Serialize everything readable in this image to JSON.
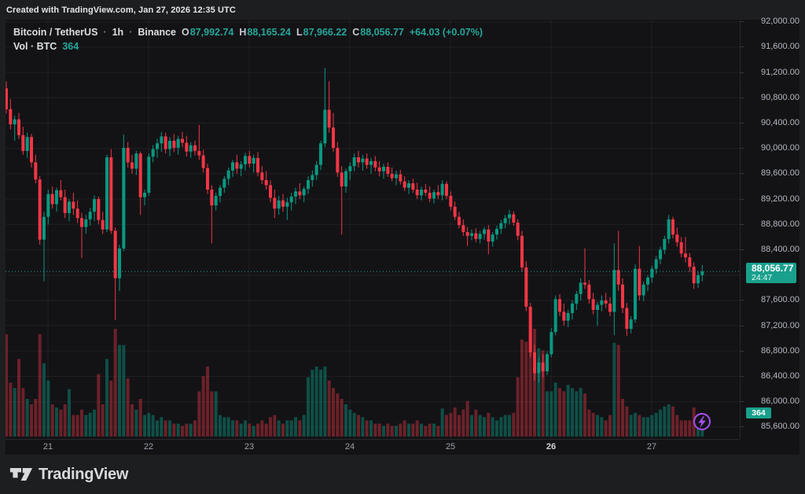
{
  "top_bar": {
    "attribution": "Created with TradingView.com, Jan 27, 2026 12:35 UTC"
  },
  "legend": {
    "symbol": "Bitcoin / TetherUS",
    "separator": "·",
    "interval": "1h",
    "exchange": "Binance",
    "o_label": "O",
    "o": "87,992.74",
    "h_label": "H",
    "h": "88,165.24",
    "l_label": "L",
    "l": "87,966.22",
    "c_label": "C",
    "c": "88,056.77",
    "change": "+64.03 (+0.07%)",
    "vol_label": "Vol · BTC",
    "vol_value": "364"
  },
  "footer": {
    "brand": "TradingView"
  },
  "colors": {
    "up": "#089981",
    "down": "#f23645",
    "vol_up": "rgba(8,153,129,0.45)",
    "vol_down": "rgba(242,54,69,0.40)",
    "badge": "#18a08c",
    "text_green": "#26a69a",
    "accent_purple": "#a74ff1",
    "grid": "rgba(255,255,255,0.055)"
  },
  "chart_data": {
    "type": "candlestick_with_volume",
    "symbol": "BTCUSDT",
    "title": "Bitcoin / TetherUS · 1h · Binance",
    "interval": "1h",
    "legend_position": "top-left",
    "grid": true,
    "last_price": {
      "value": 88056.77,
      "label": "88,056.77",
      "countdown": "24:47"
    },
    "last_volume_label": "364",
    "y_axis": {
      "side": "right",
      "range": [
        85400,
        92030
      ],
      "ticks": [
        {
          "v": 92000,
          "label": "92,000.00"
        },
        {
          "v": 91600,
          "label": "91,600.00"
        },
        {
          "v": 91200,
          "label": "91,200.00"
        },
        {
          "v": 90800,
          "label": "90,800.00"
        },
        {
          "v": 90400,
          "label": "90,400.00"
        },
        {
          "v": 90000,
          "label": "90,000.00"
        },
        {
          "v": 89600,
          "label": "89,600.00"
        },
        {
          "v": 89200,
          "label": "89,200.00"
        },
        {
          "v": 88800,
          "label": "88,800.00"
        },
        {
          "v": 88400,
          "label": "88,400.00"
        },
        {
          "v": 87600,
          "label": "87,600.00"
        },
        {
          "v": 87200,
          "label": "87,200.00"
        },
        {
          "v": 86800,
          "label": "86,800.00"
        },
        {
          "v": 86400,
          "label": "86,400.00"
        },
        {
          "v": 86000,
          "label": "86,000.00"
        },
        {
          "v": 85600,
          "label": "85,600.00"
        }
      ],
      "grid_values": [
        92000,
        91600,
        91200,
        90800,
        90400,
        90000,
        89600,
        89200,
        88800,
        88400,
        88000,
        87600,
        87200,
        86800,
        86400,
        86000,
        85600
      ]
    },
    "x_axis": {
      "labels": [
        "21",
        "22",
        "23",
        "24",
        "25",
        "26",
        "27"
      ],
      "bold_label": "26",
      "unit": "day of Jan 2026, hourly bars"
    },
    "candles_format": [
      "open",
      "high",
      "low",
      "close",
      "relative_volume"
    ],
    "candles": [
      [
        90950,
        91060,
        90550,
        90620,
        0.95
      ],
      [
        90620,
        90780,
        90300,
        90380,
        0.5
      ],
      [
        90380,
        90520,
        90120,
        90460,
        0.45
      ],
      [
        90460,
        90560,
        90150,
        90210,
        0.72
      ],
      [
        90210,
        90340,
        89900,
        89960,
        0.45
      ],
      [
        89960,
        90250,
        89850,
        90180,
        0.35
      ],
      [
        90180,
        90230,
        89700,
        89780,
        0.3
      ],
      [
        89780,
        89900,
        89450,
        89510,
        0.35
      ],
      [
        89510,
        89560,
        88480,
        88560,
        0.95
      ],
      [
        88560,
        89000,
        87900,
        88920,
        0.68
      ],
      [
        88920,
        89350,
        88800,
        89280,
        0.52
      ],
      [
        89280,
        89400,
        89050,
        89120,
        0.3
      ],
      [
        89120,
        89380,
        89000,
        89340,
        0.27
      ],
      [
        89340,
        89500,
        89180,
        89230,
        0.25
      ],
      [
        89230,
        89350,
        88900,
        88980,
        0.3
      ],
      [
        88980,
        89200,
        88850,
        89160,
        0.44
      ],
      [
        89160,
        89300,
        88950,
        89050,
        0.2
      ],
      [
        89050,
        89180,
        88820,
        88900,
        0.2
      ],
      [
        88900,
        88980,
        88270,
        88760,
        0.25
      ],
      [
        88760,
        88950,
        88650,
        88880,
        0.2
      ],
      [
        88880,
        89060,
        88780,
        89000,
        0.22
      ],
      [
        89000,
        89260,
        88850,
        89200,
        0.25
      ],
      [
        89200,
        89240,
        88800,
        88870,
        0.58
      ],
      [
        88870,
        89000,
        88650,
        88720,
        0.3
      ],
      [
        88720,
        89900,
        88680,
        89860,
        0.72
      ],
      [
        89860,
        89990,
        88650,
        88700,
        0.52
      ],
      [
        88700,
        88750,
        87290,
        87950,
        1.0
      ],
      [
        87950,
        88480,
        87750,
        88420,
        0.85
      ],
      [
        88420,
        90220,
        88380,
        90010,
        0.85
      ],
      [
        90010,
        90100,
        89700,
        89780,
        0.54
      ],
      [
        89780,
        89900,
        89600,
        89680,
        0.3
      ],
      [
        89680,
        89960,
        89580,
        89920,
        0.25
      ],
      [
        89920,
        89950,
        88950,
        89230,
        0.35
      ],
      [
        89230,
        89350,
        89100,
        89300,
        0.2
      ],
      [
        89300,
        89920,
        89250,
        89870,
        0.22
      ],
      [
        89870,
        90050,
        89780,
        89990,
        0.2
      ],
      [
        89990,
        90150,
        89850,
        90080,
        0.15
      ],
      [
        90080,
        90260,
        89950,
        90190,
        0.18
      ],
      [
        90190,
        90250,
        89920,
        89990,
        0.15
      ],
      [
        89990,
        90180,
        89880,
        90120,
        0.15
      ],
      [
        90120,
        90230,
        89940,
        90010,
        0.12
      ],
      [
        90010,
        90200,
        89900,
        90150,
        0.12
      ],
      [
        90150,
        90260,
        90020,
        90090,
        0.1
      ],
      [
        90090,
        90200,
        89870,
        89950,
        0.12
      ],
      [
        89950,
        90100,
        89850,
        90050,
        0.12
      ],
      [
        90050,
        90120,
        89890,
        89960,
        0.15
      ],
      [
        89960,
        90370,
        89820,
        89890,
        0.42
      ],
      [
        89890,
        89980,
        89620,
        89690,
        0.56
      ],
      [
        89690,
        89760,
        89280,
        89350,
        0.65
      ],
      [
        89350,
        89420,
        88500,
        89100,
        0.42
      ],
      [
        89100,
        89300,
        89020,
        89250,
        0.42
      ],
      [
        89250,
        89420,
        89150,
        89380,
        0.2
      ],
      [
        89380,
        89560,
        89300,
        89520,
        0.18
      ],
      [
        89520,
        89700,
        89420,
        89650,
        0.18
      ],
      [
        89650,
        89820,
        89550,
        89780,
        0.15
      ],
      [
        89780,
        89900,
        89600,
        89680,
        0.15
      ],
      [
        89680,
        89800,
        89560,
        89750,
        0.12
      ],
      [
        89750,
        89930,
        89650,
        89880,
        0.15
      ],
      [
        89880,
        89960,
        89700,
        89760,
        0.12
      ],
      [
        89760,
        89900,
        89620,
        89850,
        0.1
      ],
      [
        89850,
        89940,
        89560,
        89620,
        0.12
      ],
      [
        89620,
        89720,
        89440,
        89500,
        0.15
      ],
      [
        89500,
        89640,
        89350,
        89420,
        0.12
      ],
      [
        89420,
        89500,
        89150,
        89220,
        0.18
      ],
      [
        89220,
        89350,
        88900,
        89050,
        0.2
      ],
      [
        89050,
        89250,
        88950,
        89180,
        0.15
      ],
      [
        89180,
        89280,
        89000,
        89080,
        0.12
      ],
      [
        89080,
        89220,
        88870,
        89150,
        0.15
      ],
      [
        89150,
        89300,
        89020,
        89240,
        0.15
      ],
      [
        89240,
        89380,
        89120,
        89320,
        0.18
      ],
      [
        89320,
        89450,
        89200,
        89260,
        0.15
      ],
      [
        89260,
        89400,
        89150,
        89360,
        0.2
      ],
      [
        89360,
        89560,
        89280,
        89500,
        0.55
      ],
      [
        89500,
        89650,
        89400,
        89580,
        0.62
      ],
      [
        89580,
        89800,
        89500,
        89740,
        0.65
      ],
      [
        89740,
        90120,
        89660,
        90080,
        0.62
      ],
      [
        90080,
        91270,
        90020,
        90610,
        0.65
      ],
      [
        90610,
        91060,
        90250,
        90330,
        0.52
      ],
      [
        90330,
        90560,
        89950,
        90010,
        0.45
      ],
      [
        90010,
        90100,
        89550,
        89620,
        0.4
      ],
      [
        89620,
        89720,
        88640,
        89400,
        0.35
      ],
      [
        89400,
        89680,
        89300,
        89640,
        0.3
      ],
      [
        89640,
        89780,
        89500,
        89720,
        0.25
      ],
      [
        89720,
        89920,
        89640,
        89860,
        0.22
      ],
      [
        89860,
        89960,
        89700,
        89780,
        0.2
      ],
      [
        89780,
        89900,
        89650,
        89840,
        0.18
      ],
      [
        89840,
        89920,
        89680,
        89740,
        0.15
      ],
      [
        89740,
        89850,
        89600,
        89800,
        0.15
      ],
      [
        89800,
        89880,
        89640,
        89700,
        0.12
      ],
      [
        89700,
        89800,
        89560,
        89640,
        0.12
      ],
      [
        89640,
        89760,
        89520,
        89710,
        0.1
      ],
      [
        89710,
        89780,
        89550,
        89600,
        0.12
      ],
      [
        89600,
        89700,
        89480,
        89530,
        0.1
      ],
      [
        89530,
        89650,
        89420,
        89590,
        0.1
      ],
      [
        89590,
        89660,
        89430,
        89480,
        0.12
      ],
      [
        89480,
        89560,
        89330,
        89380,
        0.15
      ],
      [
        89380,
        89500,
        89280,
        89450,
        0.12
      ],
      [
        89450,
        89520,
        89300,
        89350,
        0.12
      ],
      [
        89350,
        89460,
        89200,
        89260,
        0.15
      ],
      [
        89260,
        89400,
        89180,
        89350,
        0.12
      ],
      [
        89350,
        89440,
        89250,
        89300,
        0.1
      ],
      [
        89300,
        89400,
        89150,
        89210,
        0.12
      ],
      [
        89210,
        89350,
        89130,
        89310,
        0.12
      ],
      [
        89310,
        89420,
        89200,
        89260,
        0.1
      ],
      [
        89260,
        89500,
        89180,
        89440,
        0.26
      ],
      [
        89440,
        89480,
        89200,
        89250,
        0.2
      ],
      [
        89250,
        89320,
        89020,
        89080,
        0.22
      ],
      [
        89080,
        89160,
        88870,
        88920,
        0.27
      ],
      [
        88920,
        89000,
        88740,
        88790,
        0.2
      ],
      [
        88790,
        88880,
        88620,
        88680,
        0.25
      ],
      [
        88680,
        88760,
        88460,
        88620,
        0.33
      ],
      [
        88620,
        88720,
        88550,
        88660,
        0.2
      ],
      [
        88660,
        88740,
        88520,
        88570,
        0.25
      ],
      [
        88570,
        88700,
        88500,
        88650,
        0.2
      ],
      [
        88650,
        88760,
        88560,
        88720,
        0.18
      ],
      [
        88720,
        88790,
        88330,
        88530,
        0.22
      ],
      [
        88530,
        88680,
        88450,
        88640,
        0.18
      ],
      [
        88640,
        88780,
        88560,
        88730,
        0.15
      ],
      [
        88730,
        88870,
        88650,
        88820,
        0.18
      ],
      [
        88820,
        88950,
        88740,
        88900,
        0.2
      ],
      [
        88900,
        89030,
        88800,
        88960,
        0.2
      ],
      [
        88960,
        89010,
        88780,
        88830,
        0.22
      ],
      [
        88830,
        88880,
        88550,
        88620,
        0.55
      ],
      [
        88620,
        88700,
        88050,
        88120,
        0.9
      ],
      [
        88120,
        88220,
        87430,
        87500,
        0.88
      ],
      [
        87500,
        87560,
        86700,
        86780,
        0.98
      ],
      [
        86780,
        86900,
        86330,
        86450,
        1.0
      ],
      [
        86450,
        86700,
        86300,
        86620,
        0.82
      ],
      [
        86620,
        86750,
        86380,
        86480,
        0.8
      ],
      [
        86480,
        86800,
        86420,
        86750,
        0.42
      ],
      [
        86750,
        87160,
        86700,
        87100,
        0.42
      ],
      [
        87100,
        87680,
        87050,
        87620,
        0.5
      ],
      [
        87620,
        87700,
        87350,
        87420,
        0.45
      ],
      [
        87420,
        87550,
        87200,
        87280,
        0.42
      ],
      [
        87280,
        87450,
        87180,
        87400,
        0.48
      ],
      [
        87400,
        87600,
        87300,
        87550,
        0.45
      ],
      [
        87550,
        87750,
        87450,
        87700,
        0.42
      ],
      [
        87700,
        87950,
        87600,
        87880,
        0.45
      ],
      [
        87880,
        88420,
        87780,
        87850,
        0.4
      ],
      [
        87850,
        87920,
        87550,
        87620,
        0.25
      ],
      [
        87620,
        87720,
        87380,
        87450,
        0.22
      ],
      [
        87450,
        87580,
        87200,
        87530,
        0.2
      ],
      [
        87530,
        87680,
        87430,
        87600,
        0.18
      ],
      [
        87600,
        87720,
        87480,
        87550,
        0.15
      ],
      [
        87550,
        87650,
        87350,
        87420,
        0.2
      ],
      [
        87420,
        88500,
        87050,
        88080,
        0.87
      ],
      [
        88080,
        88700,
        87750,
        87850,
        0.85
      ],
      [
        87850,
        87950,
        87400,
        87480,
        0.35
      ],
      [
        87480,
        87560,
        87040,
        87150,
        0.28
      ],
      [
        87150,
        87350,
        87080,
        87300,
        0.2
      ],
      [
        87300,
        88170,
        87250,
        88100,
        0.22
      ],
      [
        88100,
        88460,
        87600,
        87680,
        0.2
      ],
      [
        87680,
        87900,
        87590,
        87850,
        0.18
      ],
      [
        87850,
        88000,
        87750,
        87960,
        0.18
      ],
      [
        87960,
        88150,
        87880,
        88100,
        0.2
      ],
      [
        88100,
        88300,
        88020,
        88250,
        0.22
      ],
      [
        88250,
        88450,
        88170,
        88400,
        0.25
      ],
      [
        88400,
        88620,
        88330,
        88570,
        0.28
      ],
      [
        88570,
        88950,
        88500,
        88880,
        0.3
      ],
      [
        88880,
        88920,
        88580,
        88640,
        0.28
      ],
      [
        88640,
        88750,
        88450,
        88520,
        0.2
      ],
      [
        88520,
        88600,
        88280,
        88340,
        0.15
      ],
      [
        88340,
        88600,
        88200,
        88280,
        0.15
      ],
      [
        88280,
        88350,
        88050,
        88130,
        0.15
      ],
      [
        88130,
        88200,
        87780,
        87870,
        0.27
      ],
      [
        87870,
        88050,
        87800,
        88000,
        0.2
      ],
      [
        88000,
        88160,
        87900,
        88056.77,
        0.2
      ]
    ]
  }
}
